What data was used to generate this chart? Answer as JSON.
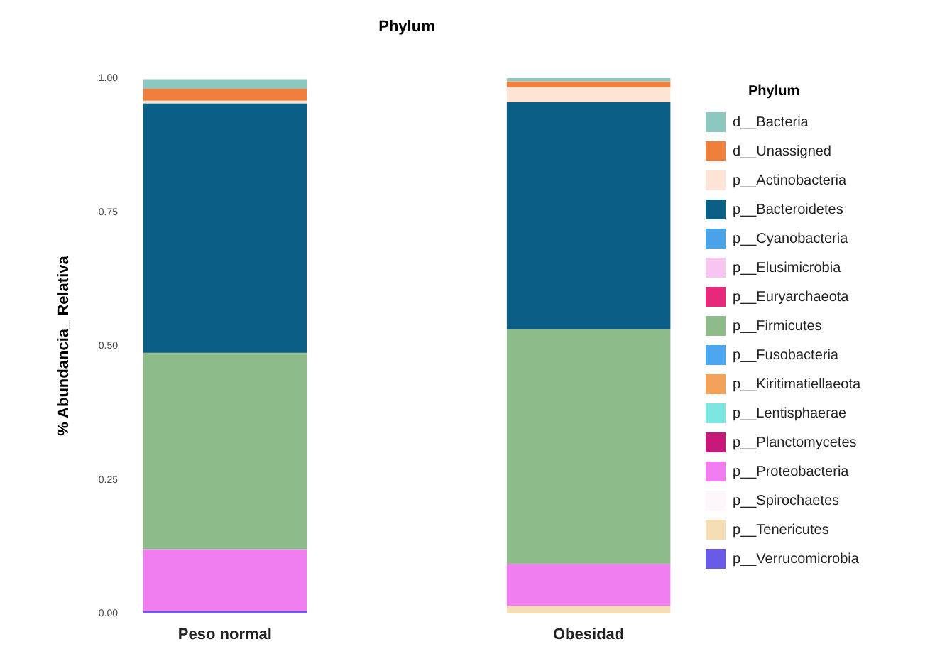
{
  "chart_data": {
    "type": "bar",
    "stacked": true,
    "title": "Phylum",
    "ylabel": "% Abundancia_ Relativa",
    "legend_title": "Phylum",
    "legend": "right",
    "categories": [
      "Peso normal",
      "Obesidad"
    ],
    "ylim": [
      0,
      1
    ],
    "yticks": [
      {
        "value": 0,
        "label": "0.00"
      },
      {
        "value": 0.25,
        "label": "0.25"
      },
      {
        "value": 0.5,
        "label": "0.50"
      },
      {
        "value": 0.75,
        "label": "0.75"
      },
      {
        "value": 1,
        "label": "1.00"
      }
    ],
    "series": [
      {
        "name": "p__Verrucomicrobia",
        "color": "#6a5ae8",
        "values": [
          0.004,
          0
        ]
      },
      {
        "name": "p__Tenericutes",
        "color": "#f5deb3",
        "values": [
          null,
          0.014
        ]
      },
      {
        "name": "p__Spirochaetes",
        "color": "#fdf6fb",
        "values": [
          0,
          0
        ]
      },
      {
        "name": "p__Proteobacteria",
        "color": "#f07ef0",
        "values": [
          0.116,
          0.079
        ]
      },
      {
        "name": "p__Planctomycetes",
        "color": "#c8197a",
        "values": [
          0,
          0
        ]
      },
      {
        "name": "p__Lentisphaerae",
        "color": "#7ee6e0",
        "values": [
          0,
          0
        ]
      },
      {
        "name": "p__Kiritimatiellaeota",
        "color": "#f4a15a",
        "values": [
          0,
          0
        ]
      },
      {
        "name": "p__Fusobacteria",
        "color": "#4ca6f0",
        "values": [
          0,
          0
        ]
      },
      {
        "name": "p__Firmicutes",
        "color": "#8dbb8a",
        "values": [
          0.367,
          0.438
        ]
      },
      {
        "name": "p__Euryarchaeota",
        "color": "#e8287a",
        "values": [
          0,
          0
        ]
      },
      {
        "name": "p__Elusimicrobia",
        "color": "#f7c6f0",
        "values": [
          0,
          0
        ]
      },
      {
        "name": "p__Cyanobacteria",
        "color": "#4aa3e8",
        "values": [
          0,
          0
        ]
      },
      {
        "name": "p__Bacteroidetes",
        "color": "#0b5e85",
        "values": [
          0.466,
          0.424
        ]
      },
      {
        "name": "p__Actinobacteria",
        "color": "#fde4d4",
        "values": [
          0.005,
          0.028
        ]
      },
      {
        "name": "d__Unassigned",
        "color": "#f07f3c",
        "values": [
          0.022,
          0.011
        ]
      },
      {
        "name": "d__Bacteria",
        "color": "#8cc7c0",
        "values": [
          0.018,
          0.006
        ]
      }
    ]
  }
}
